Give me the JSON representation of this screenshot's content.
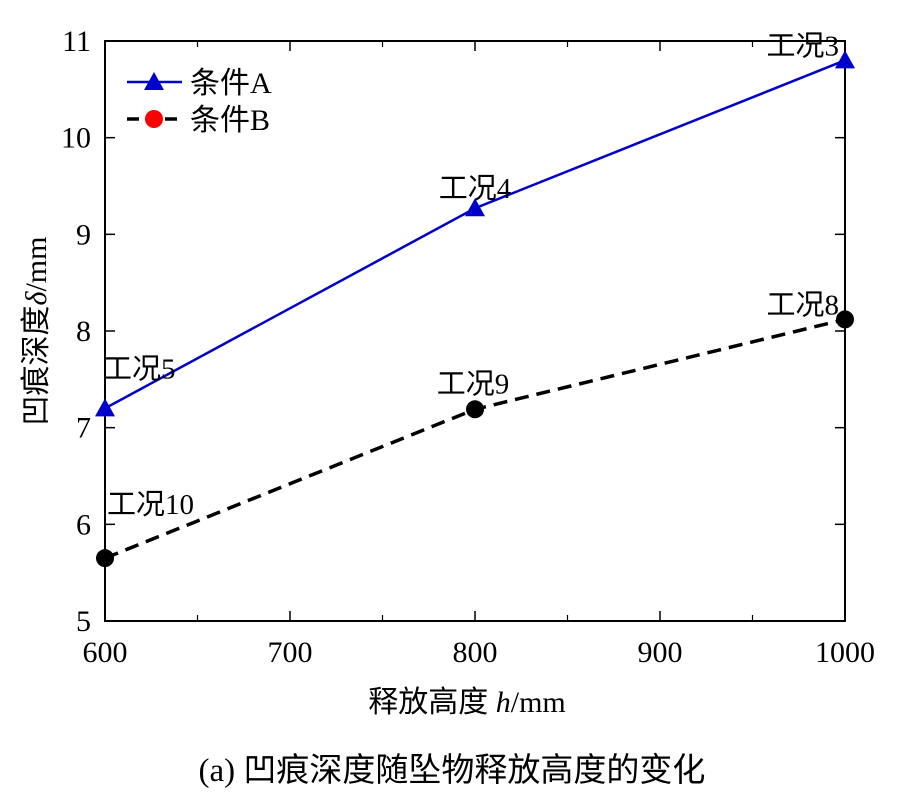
{
  "chart_data": {
    "type": "line",
    "xlabel_prefix": "释放高度 ",
    "xlabel_var": "h",
    "xlabel_unit": "/mm",
    "ylabel_prefix": "凹痕深度",
    "ylabel_var": "δ",
    "ylabel_unit": "/mm",
    "xlim": [
      600,
      1000
    ],
    "ylim": [
      5,
      11
    ],
    "xticks": [
      600,
      700,
      800,
      900,
      1000
    ],
    "yticks": [
      5,
      6,
      7,
      8,
      9,
      10,
      11
    ],
    "grid": false,
    "legend_position": "top-left",
    "series": [
      {
        "name": "条件A",
        "color": "#0000cc",
        "marker": "triangle",
        "line_style": "solid",
        "x": [
          600,
          800,
          1000
        ],
        "y": [
          7.2,
          9.27,
          10.8
        ],
        "labels": [
          "工况5",
          "工况4",
          "工况3"
        ]
      },
      {
        "name": "条件B",
        "color": "#000000",
        "legend_marker_color": "#ff0000",
        "marker": "circle",
        "line_style": "dashed",
        "x": [
          600,
          800,
          1000
        ],
        "y": [
          5.65,
          7.19,
          8.12
        ],
        "labels": [
          "工况10",
          "工况9",
          "工况8"
        ]
      }
    ]
  },
  "caption": "(a)  凹痕深度随坠物释放高度的变化"
}
